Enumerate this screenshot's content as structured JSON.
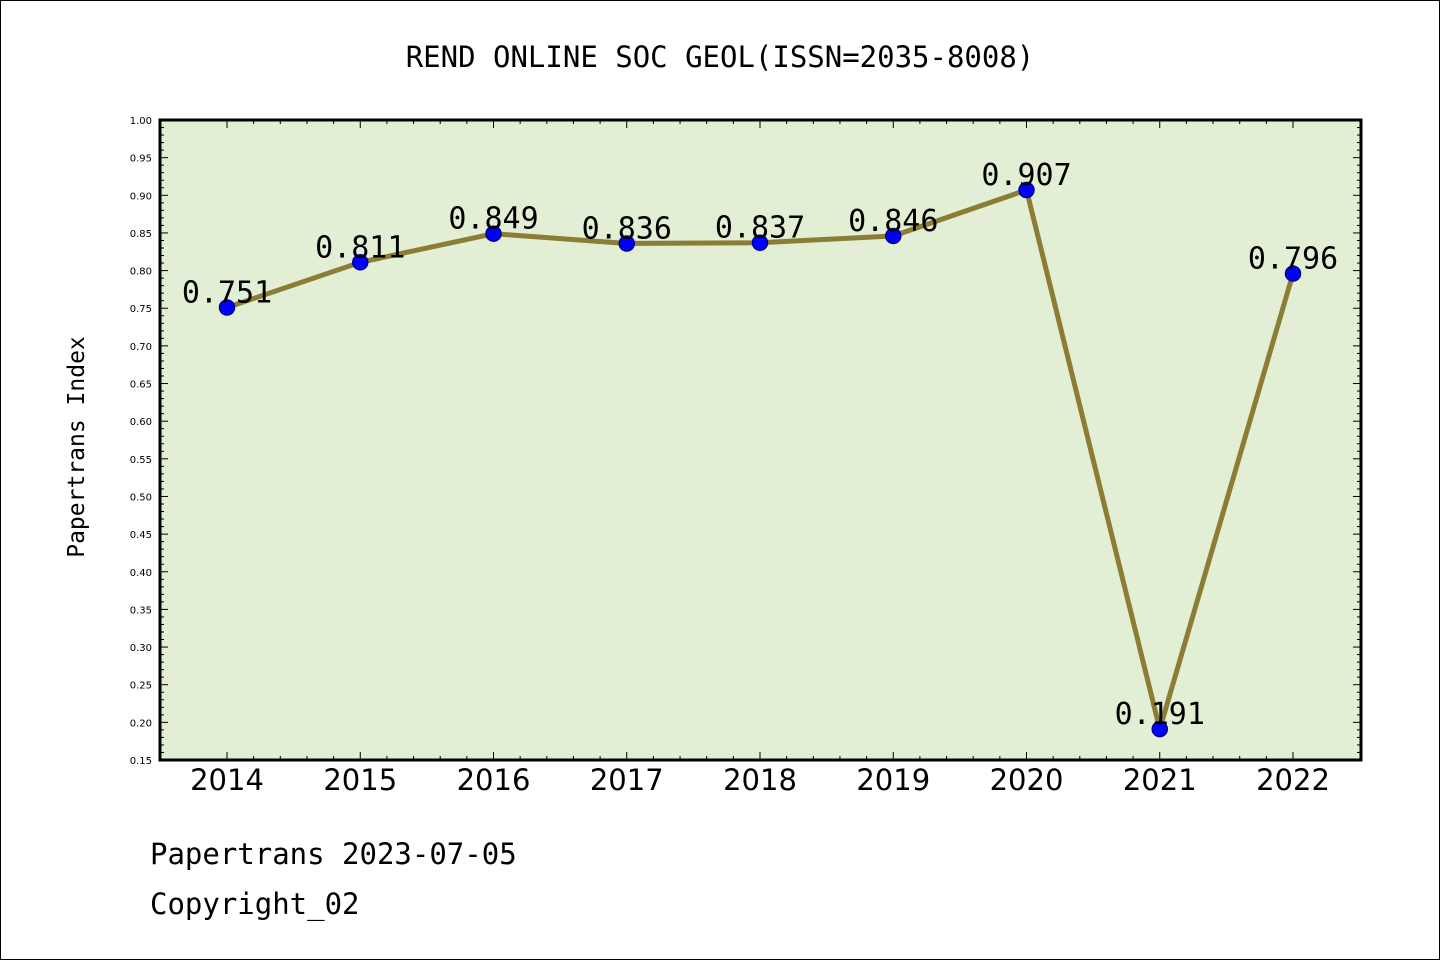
{
  "chart_data": {
    "type": "line",
    "title": "REND ONLINE SOC GEOL(ISSN=2035-8008)",
    "xlabel": "",
    "ylabel": "Papertrans Index",
    "categories": [
      "2014",
      "2015",
      "2016",
      "2017",
      "2018",
      "2019",
      "2020",
      "2021",
      "2022"
    ],
    "values": [
      0.751,
      0.811,
      0.849,
      0.836,
      0.837,
      0.846,
      0.907,
      0.191,
      0.796
    ],
    "data_labels": [
      "0.751",
      "0.811",
      "0.849",
      "0.836",
      "0.837",
      "0.846",
      "0.907",
      "0.191",
      "0.796"
    ],
    "ylim": [
      0.15,
      1.0
    ],
    "yticks": [
      "0.15",
      "0.20",
      "0.25",
      "0.30",
      "0.35",
      "0.40",
      "0.45",
      "0.50",
      "0.55",
      "0.60",
      "0.65",
      "0.70",
      "0.75",
      "0.80",
      "0.85",
      "0.90",
      "0.95",
      "1.00"
    ],
    "grid": false,
    "legend": "none",
    "colors": {
      "plot_background": "#e2efd5",
      "line": "#8b7d35",
      "marker_fill": "#0000ff",
      "marker_edge": "#00008b",
      "axis": "#000000"
    }
  },
  "footer": {
    "source": "Papertrans 2023-07-05",
    "copyright": "Copyright_02"
  }
}
